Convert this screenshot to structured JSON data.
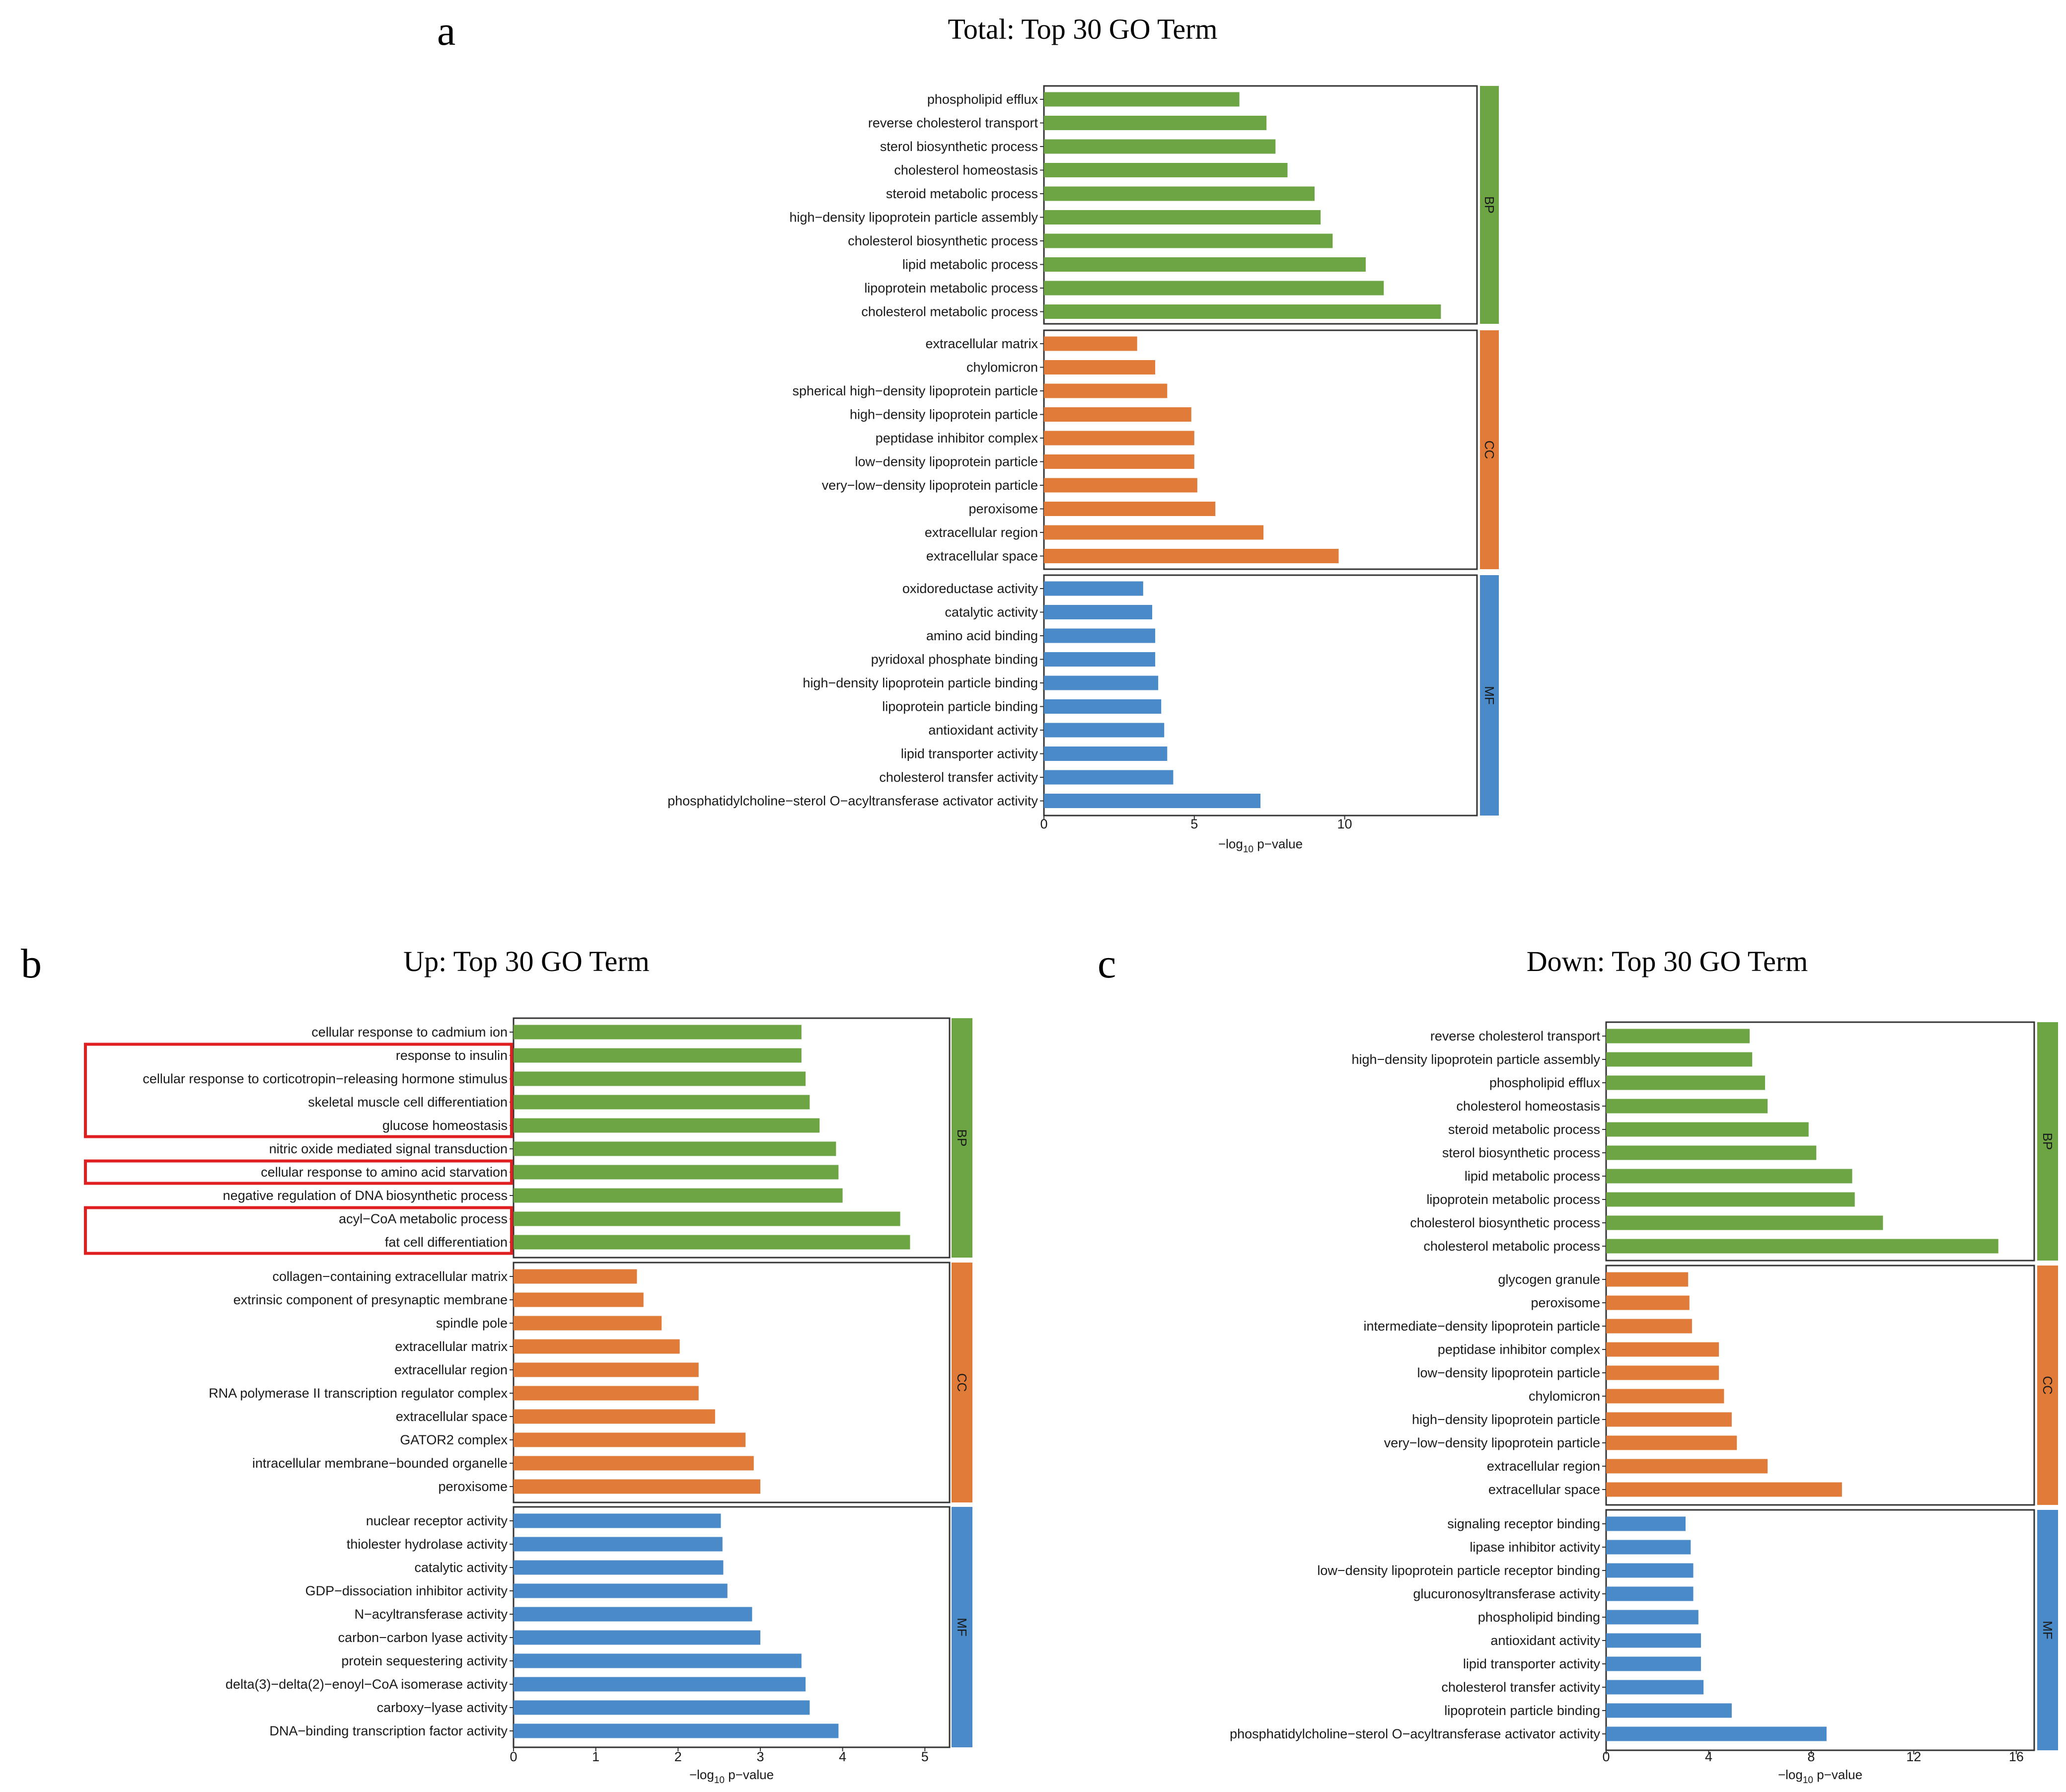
{
  "chart_data": [
    {
      "panel_letter": "a",
      "title": "Total: Top 30 GO Term",
      "type": "bar",
      "orientation": "horizontal",
      "xlabel": {
        "prefix": "−log",
        "sub": "10",
        "suffix": " p−value"
      },
      "xlim": [
        0,
        14.4
      ],
      "xticks": [
        0,
        5,
        10
      ],
      "grid": false,
      "highlighted_terms": [],
      "groups": [
        {
          "name": "BP",
          "color": "#6da544",
          "terms": [
            "phospholipid efflux",
            "reverse cholesterol transport",
            "sterol biosynthetic process",
            "cholesterol homeostasis",
            "steroid metabolic process",
            "high−density lipoprotein particle assembly",
            "cholesterol biosynthetic process",
            "lipid metabolic process",
            "lipoprotein metabolic process",
            "cholesterol metabolic process"
          ],
          "values": [
            6.5,
            7.4,
            7.7,
            8.1,
            9.0,
            9.2,
            9.6,
            10.7,
            11.3,
            13.2
          ]
        },
        {
          "name": "CC",
          "color": "#e07b39",
          "terms": [
            "extracellular matrix",
            "chylomicron",
            "spherical high−density lipoprotein particle",
            "high−density lipoprotein particle",
            "peptidase inhibitor complex",
            "low−density lipoprotein particle",
            "very−low−density lipoprotein particle",
            "peroxisome",
            "extracellular region",
            "extracellular space"
          ],
          "values": [
            3.1,
            3.7,
            4.1,
            4.9,
            5.0,
            5.0,
            5.1,
            5.7,
            7.3,
            9.8
          ]
        },
        {
          "name": "MF",
          "color": "#4a8ac9",
          "terms": [
            "oxidoreductase activity",
            "catalytic activity",
            "amino acid binding",
            "pyridoxal phosphate binding",
            "high−density lipoprotein particle binding",
            "lipoprotein particle binding",
            "antioxidant activity",
            "lipid transporter activity",
            "cholesterol transfer activity",
            "phosphatidylcholine−sterol O−acyltransferase activator activity"
          ],
          "values": [
            3.3,
            3.6,
            3.7,
            3.7,
            3.8,
            3.9,
            4.0,
            4.1,
            4.3,
            7.2
          ]
        }
      ]
    },
    {
      "panel_letter": "b",
      "title": "Up: Top 30 GO Term",
      "type": "bar",
      "orientation": "horizontal",
      "xlabel": {
        "prefix": "−log",
        "sub": "10",
        "suffix": " p−value"
      },
      "xlim": [
        0,
        5.3
      ],
      "xticks": [
        0,
        1,
        2,
        3,
        4,
        5
      ],
      "grid": false,
      "highlighted_terms": [
        [
          1,
          4
        ],
        [
          6,
          6
        ],
        [
          8,
          9
        ]
      ],
      "groups": [
        {
          "name": "BP",
          "color": "#6da544",
          "terms": [
            "cellular response to cadmium ion",
            "response to insulin",
            "cellular response to corticotropin−releasing hormone stimulus",
            "skeletal muscle cell differentiation",
            "glucose homeostasis",
            "nitric oxide mediated signal transduction",
            "cellular response to amino acid starvation",
            "negative regulation of DNA biosynthetic process",
            "acyl−CoA metabolic process",
            "fat cell differentiation"
          ],
          "values": [
            3.5,
            3.5,
            3.55,
            3.6,
            3.72,
            3.92,
            3.95,
            4.0,
            4.7,
            4.82
          ]
        },
        {
          "name": "CC",
          "color": "#e07b39",
          "terms": [
            "collagen−containing extracellular matrix",
            "extrinsic component of presynaptic membrane",
            "spindle pole",
            "extracellular matrix",
            "extracellular region",
            "RNA polymerase II transcription regulator complex",
            "extracellular space",
            "GATOR2 complex",
            "intracellular membrane−bounded organelle",
            "peroxisome"
          ],
          "values": [
            1.5,
            1.58,
            1.8,
            2.02,
            2.25,
            2.25,
            2.45,
            2.82,
            2.92,
            3.0
          ]
        },
        {
          "name": "MF",
          "color": "#4a8ac9",
          "terms": [
            "nuclear receptor activity",
            "thiolester hydrolase activity",
            "catalytic activity",
            "GDP−dissociation inhibitor activity",
            "N−acyltransferase activity",
            "carbon−carbon lyase activity",
            "protein sequestering activity",
            "delta(3)−delta(2)−enoyl−CoA isomerase activity",
            "carboxy−lyase activity",
            "DNA−binding transcription factor activity"
          ],
          "values": [
            2.52,
            2.54,
            2.55,
            2.6,
            2.9,
            3.0,
            3.5,
            3.55,
            3.6,
            3.95
          ]
        }
      ]
    },
    {
      "panel_letter": "c",
      "title": "Down: Top 30 GO Term",
      "type": "bar",
      "orientation": "horizontal",
      "xlabel": {
        "prefix": "−log",
        "sub": "10",
        "suffix": " p−value"
      },
      "xlim": [
        0,
        16.7
      ],
      "xticks": [
        0,
        4,
        8,
        12,
        16
      ],
      "grid": false,
      "highlighted_terms": [],
      "groups": [
        {
          "name": "BP",
          "color": "#6da544",
          "terms": [
            "reverse cholesterol transport",
            "high−density lipoprotein particle assembly",
            "phospholipid efflux",
            "cholesterol homeostasis",
            "steroid metabolic process",
            "sterol biosynthetic process",
            "lipid metabolic process",
            "lipoprotein metabolic process",
            "cholesterol biosynthetic process",
            "cholesterol metabolic process"
          ],
          "values": [
            5.6,
            5.7,
            6.2,
            6.3,
            7.9,
            8.2,
            9.6,
            9.7,
            10.8,
            15.3
          ]
        },
        {
          "name": "CC",
          "color": "#e07b39",
          "terms": [
            "glycogen granule",
            "peroxisome",
            "intermediate−density lipoprotein particle",
            "peptidase inhibitor complex",
            "low−density lipoprotein particle",
            "chylomicron",
            "high−density lipoprotein particle",
            "very−low−density lipoprotein particle",
            "extracellular region",
            "extracellular space"
          ],
          "values": [
            3.2,
            3.25,
            3.35,
            4.4,
            4.4,
            4.6,
            4.9,
            5.1,
            6.3,
            9.2
          ]
        },
        {
          "name": "MF",
          "color": "#4a8ac9",
          "terms": [
            "signaling receptor binding",
            "lipase inhibitor activity",
            "low−density lipoprotein particle receptor binding",
            "glucuronosyltransferase activity",
            "phospholipid binding",
            "antioxidant activity",
            "lipid transporter activity",
            "cholesterol transfer activity",
            "lipoprotein particle binding",
            "phosphatidylcholine−sterol O−acyltransferase activator activity"
          ],
          "values": [
            3.1,
            3.3,
            3.4,
            3.4,
            3.6,
            3.7,
            3.7,
            3.8,
            4.9,
            8.6
          ]
        }
      ]
    }
  ]
}
